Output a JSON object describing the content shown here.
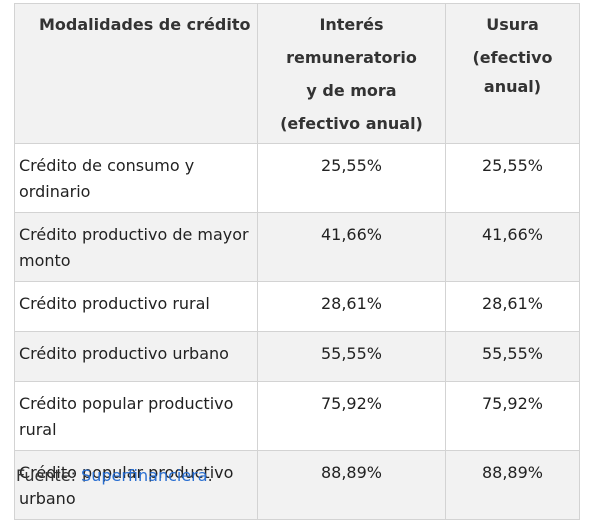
{
  "table": {
    "headers": {
      "col1": "Modalidades de crédito",
      "col2_line1": "Interés",
      "col2_line2": "remuneratorio",
      "col2_line3": "y de mora",
      "col2_line4": "(efectivo anual)",
      "col3_line1": "Usura",
      "col3_line2": "(efectivo",
      "col3_line3": "anual)"
    },
    "rows": [
      {
        "modalidad": "Crédito de consumo y ordinario",
        "interes": "25,55%",
        "usura": "25,55%"
      },
      {
        "modalidad": "Crédito productivo de mayor monto",
        "interes": "41,66%",
        "usura": "41,66%"
      },
      {
        "modalidad": "Crédito productivo rural",
        "interes": "28,61%",
        "usura": "28,61%"
      },
      {
        "modalidad": "Crédito productivo urbano",
        "interes": "55,55%",
        "usura": "55,55%"
      },
      {
        "modalidad": "Crédito popular productivo rural",
        "interes": "75,92%",
        "usura": "75,92%"
      },
      {
        "modalidad": "Crédito popular productivo urbano",
        "interes": "88,89%",
        "usura": "88,89%"
      }
    ]
  },
  "source": {
    "label": "Fuente: ",
    "link_text": "Superfinanciera",
    "suffix": "."
  },
  "colors": {
    "header_bg": "#f2f2f2",
    "stripe_bg": "#f2f2f2",
    "border": "#d3d3d3",
    "link": "#2a6fd1"
  }
}
